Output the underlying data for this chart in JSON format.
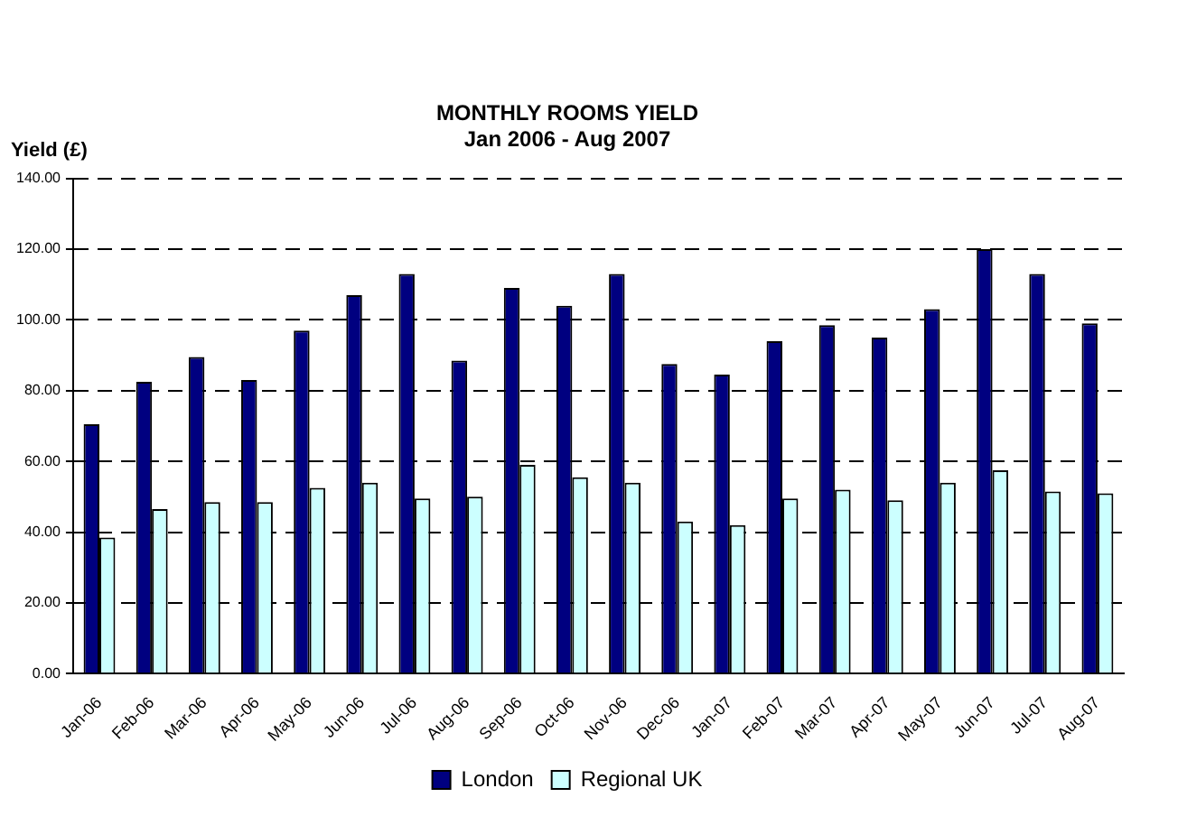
{
  "chart_data": {
    "type": "bar",
    "title": "MONTHLY ROOMS YIELD",
    "subtitle": "Jan 2006 - Aug 2007",
    "ylabel": "Yield (£)",
    "categories": [
      "Jan-06",
      "Feb-06",
      "Mar-06",
      "Apr-06",
      "May-06",
      "Jun-06",
      "Jul-06",
      "Aug-06",
      "Sep-06",
      "Oct-06",
      "Nov-06",
      "Dec-06",
      "Jan-07",
      "Feb-07",
      "Mar-07",
      "Apr-07",
      "May-07",
      "Jun-07",
      "Jul-07",
      "Aug-07"
    ],
    "series": [
      {
        "name": "London",
        "color": "#000080",
        "values": [
          70.5,
          82.5,
          89.5,
          83,
          97,
          107,
          113,
          88.5,
          109,
          104,
          113,
          87.5,
          84.5,
          94,
          98.5,
          95,
          103,
          120,
          113,
          99
        ]
      },
      {
        "name": "Regional UK",
        "color": "#ccffff",
        "values": [
          38.5,
          46.5,
          48.5,
          48.5,
          52.5,
          54,
          49.5,
          50,
          59,
          55.5,
          54,
          43,
          42,
          49.5,
          52,
          49,
          54,
          57.5,
          51.5,
          51
        ]
      }
    ],
    "ylim": [
      0,
      140
    ],
    "yticks": [
      {
        "value": 0,
        "label": "0.00"
      },
      {
        "value": 20,
        "label": "20.00"
      },
      {
        "value": 40,
        "label": "40.00"
      },
      {
        "value": 60,
        "label": "60.00"
      },
      {
        "value": 80,
        "label": "80.00"
      },
      {
        "value": 100,
        "label": "100.00"
      },
      {
        "value": 120,
        "label": "120.00"
      },
      {
        "value": 140,
        "label": "140.00"
      }
    ],
    "grid": "y",
    "line_style": "dashed",
    "legend": "bottom"
  }
}
